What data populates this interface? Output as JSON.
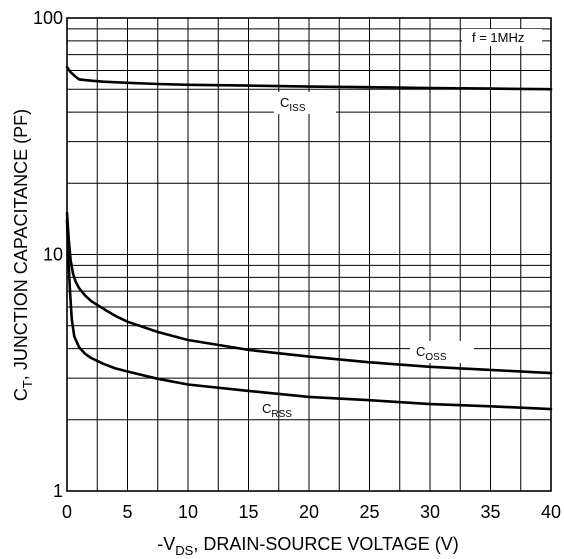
{
  "chart_data": {
    "type": "line",
    "x_scale": "linear",
    "y_scale": "log",
    "xlim": [
      0,
      40
    ],
    "ylim": [
      1,
      100
    ],
    "x_ticks": [
      "0",
      "5",
      "10",
      "15",
      "20",
      "25",
      "30",
      "35",
      "40"
    ],
    "y_ticks": [
      "1",
      "10",
      "100"
    ],
    "xlabel": {
      "prefix": "-V",
      "sub": "DS",
      "suffix": ", DRAIN-SOURCE VOLTAGE (V)"
    },
    "ylabel": {
      "prefix": "C",
      "sub": "T",
      "suffix": ", JUNCTION CAPACITANCE (PF)"
    },
    "annotation": "f = 1MHz",
    "grid": true,
    "series": [
      {
        "name": "C_ISS",
        "label_main": "C",
        "label_sub": "ISS",
        "x": [
          0,
          0.3,
          0.7,
          1,
          2,
          3,
          5,
          7.5,
          10,
          15,
          20,
          25,
          30,
          35,
          40
        ],
        "y": [
          62,
          59,
          56.5,
          55,
          54.3,
          53.8,
          53.2,
          52.6,
          52.2,
          51.8,
          51.3,
          51,
          50.6,
          50.3,
          50
        ]
      },
      {
        "name": "C_OSS",
        "label_main": "C",
        "label_sub": "OSS",
        "x": [
          0,
          0.15,
          0.3,
          0.5,
          0.7,
          1,
          1.5,
          2,
          3,
          4,
          5,
          7.5,
          10,
          15,
          20,
          25,
          30,
          35,
          40
        ],
        "y": [
          15,
          11.5,
          9.5,
          8.3,
          7.7,
          7.2,
          6.7,
          6.35,
          5.9,
          5.5,
          5.2,
          4.7,
          4.35,
          3.95,
          3.7,
          3.5,
          3.35,
          3.25,
          3.15
        ]
      },
      {
        "name": "C_RSS",
        "label_main": "C",
        "label_sub": "RSS",
        "x": [
          0,
          0.1,
          0.25,
          0.4,
          0.6,
          1,
          1.5,
          2,
          3,
          4,
          5,
          7.5,
          10,
          15,
          20,
          25,
          30,
          35,
          40
        ],
        "y": [
          14,
          10,
          7,
          5.3,
          4.5,
          4.05,
          3.8,
          3.65,
          3.45,
          3.3,
          3.2,
          2.98,
          2.82,
          2.65,
          2.5,
          2.42,
          2.33,
          2.28,
          2.22
        ]
      }
    ]
  }
}
